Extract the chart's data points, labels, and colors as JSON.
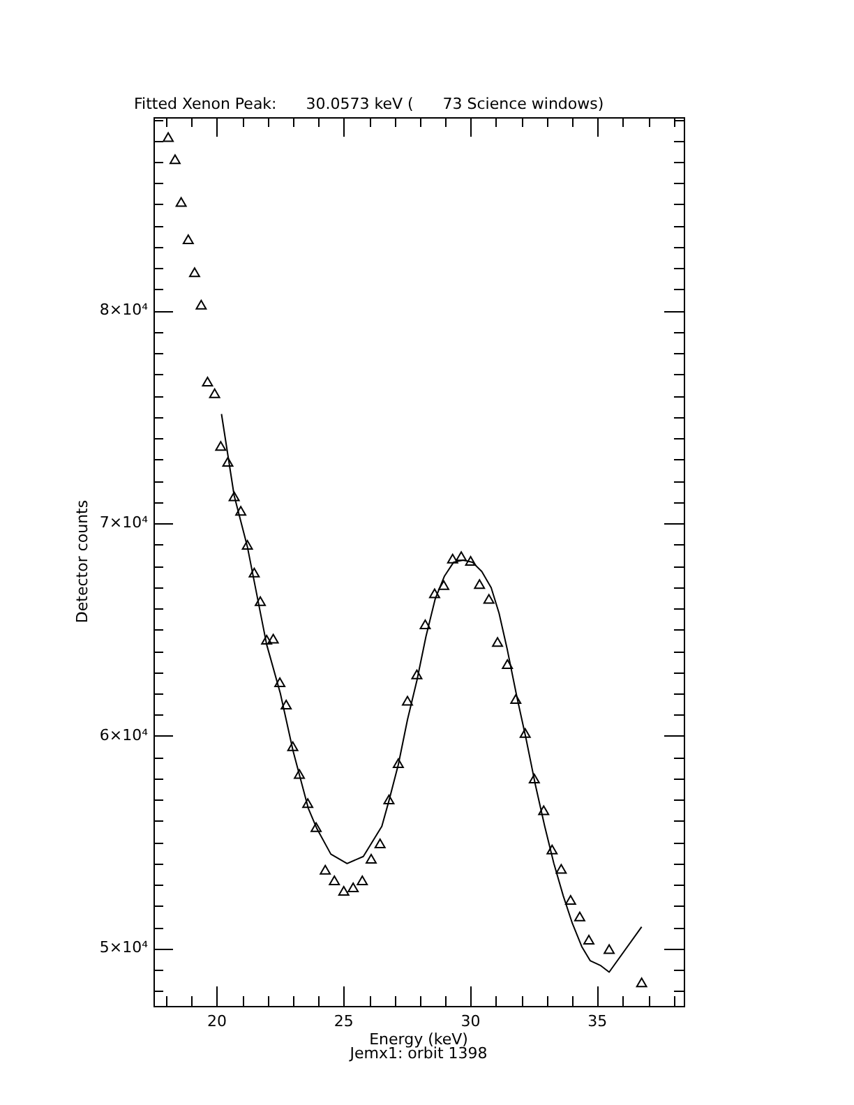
{
  "chart_data": {
    "type": "scatter",
    "title": "Fitted Xenon Peak:      30.0573 keV (      73 Science windows)",
    "xlabel": "Energy (keV)",
    "ylabel": "Detector counts",
    "annotations": [
      "Jemx1: orbit 1398"
    ],
    "xlim": [
      17.5,
      38.4
    ],
    "xticks": [
      {
        "value": 18,
        "label": null
      },
      {
        "value": 19,
        "label": null
      },
      20,
      {
        "value": 21,
        "label": null
      },
      {
        "value": 22,
        "label": null
      },
      {
        "value": 23,
        "label": null
      },
      {
        "value": 24,
        "label": null
      },
      25,
      {
        "value": 26,
        "label": null
      },
      {
        "value": 27,
        "label": null
      },
      {
        "value": 28,
        "label": null
      },
      {
        "value": 29,
        "label": null
      },
      30,
      {
        "value": 31,
        "label": null
      },
      {
        "value": 32,
        "label": null
      },
      {
        "value": 33,
        "label": null
      },
      {
        "value": 34,
        "label": null
      },
      35,
      {
        "value": 36,
        "label": null
      },
      {
        "value": 37,
        "label": null
      },
      {
        "value": 38,
        "label": null
      }
    ],
    "ylim": [
      47300,
      89100
    ],
    "yticks": [
      {
        "value": 48000,
        "label": null
      },
      {
        "value": 49000,
        "label": null
      },
      {
        "value": 50000,
        "label": "5×10⁴"
      },
      {
        "value": 51000,
        "label": null
      },
      {
        "value": 52000,
        "label": null
      },
      {
        "value": 53000,
        "label": null
      },
      {
        "value": 54000,
        "label": null
      },
      {
        "value": 55000,
        "label": null
      },
      {
        "value": 56000,
        "label": null
      },
      {
        "value": 57000,
        "label": null
      },
      {
        "value": 58000,
        "label": null
      },
      {
        "value": 59000,
        "label": null
      },
      {
        "value": 60000,
        "label": "6×10⁴"
      },
      {
        "value": 61000,
        "label": null
      },
      {
        "value": 62000,
        "label": null
      },
      {
        "value": 63000,
        "label": null
      },
      {
        "value": 64000,
        "label": null
      },
      {
        "value": 65000,
        "label": null
      },
      {
        "value": 66000,
        "label": null
      },
      {
        "value": 67000,
        "label": null
      },
      {
        "value": 68000,
        "label": null
      },
      {
        "value": 69000,
        "label": null
      },
      {
        "value": 70000,
        "label": "7×10⁴"
      },
      {
        "value": 71000,
        "label": null
      },
      {
        "value": 72000,
        "label": null
      },
      {
        "value": 73000,
        "label": null
      },
      {
        "value": 74000,
        "label": null
      },
      {
        "value": 75000,
        "label": null
      },
      {
        "value": 76000,
        "label": null
      },
      {
        "value": 77000,
        "label": null
      },
      {
        "value": 78000,
        "label": null
      },
      {
        "value": 79000,
        "label": null
      },
      {
        "value": 80000,
        "label": "8×10⁴"
      },
      {
        "value": 81000,
        "label": null
      },
      {
        "value": 82000,
        "label": null
      },
      {
        "value": 83000,
        "label": null
      },
      {
        "value": 84000,
        "label": null
      },
      {
        "value": 85000,
        "label": null
      },
      {
        "value": 86000,
        "label": null
      },
      {
        "value": 87000,
        "label": null
      },
      {
        "value": 88000,
        "label": null
      },
      {
        "value": 89000,
        "label": null
      }
    ],
    "grid": false,
    "legend": false,
    "series": [
      {
        "color": "#000000",
        "marker": "triangle",
        "x": [
          18.08,
          18.35,
          18.59,
          18.87,
          19.12,
          19.38,
          19.63,
          19.91,
          20.15,
          20.43,
          20.68,
          20.94,
          21.2,
          21.47,
          21.71,
          21.96,
          22.22,
          22.48,
          22.73,
          22.99,
          23.25,
          23.58,
          23.91,
          24.27,
          24.63,
          25.0,
          25.37,
          25.73,
          26.08,
          26.43,
          26.78,
          27.15,
          27.51,
          27.88,
          28.21,
          28.58,
          28.94,
          29.29,
          29.63,
          30.0,
          30.35,
          30.72,
          31.06,
          31.45,
          31.78,
          32.15,
          32.51,
          32.88,
          33.21,
          33.57,
          33.94,
          34.3,
          34.66,
          35.46,
          36.74
        ],
        "values": [
          88100,
          87060,
          85050,
          83290,
          81740,
          80220,
          76600,
          76050,
          73570,
          72830,
          71200,
          70520,
          68920,
          67620,
          66270,
          64460,
          64510,
          62460,
          61410,
          59450,
          58140,
          56770,
          55640,
          53640,
          53140,
          52650,
          52810,
          53140,
          54160,
          54880,
          56950,
          58650,
          61590,
          62830,
          65180,
          66640,
          67030,
          68270,
          68390,
          68170,
          67080,
          66380,
          64350,
          63310,
          61670,
          60070,
          57930,
          56440,
          54590,
          53680,
          52220,
          51440,
          50350,
          49910,
          48340
        ]
      },
      {
        "type": "line",
        "color": "#000000",
        "marker": "none",
        "line_style": "solid",
        "x": [
          20.18,
          20.68,
          21.2,
          21.96,
          22.5,
          23.0,
          23.6,
          23.94,
          24.49,
          25.13,
          25.77,
          26.5,
          26.78,
          27.15,
          27.51,
          27.88,
          28.24,
          28.6,
          28.97,
          29.33,
          29.7,
          30.07,
          30.44,
          30.81,
          31.12,
          31.45,
          31.82,
          32.18,
          32.55,
          32.92,
          33.28,
          33.65,
          34.01,
          34.38,
          34.71,
          35.11,
          35.46,
          36.74
        ],
        "values": [
          75140,
          71300,
          68900,
          64300,
          62000,
          59300,
          56600,
          55640,
          54440,
          54000,
          54330,
          55750,
          56950,
          58650,
          60760,
          62600,
          64680,
          66430,
          67520,
          68170,
          68270,
          68170,
          67730,
          66970,
          65770,
          64030,
          61850,
          59890,
          57710,
          55750,
          54000,
          52480,
          51180,
          50090,
          49430,
          49210,
          48890,
          51020
        ]
      }
    ]
  }
}
